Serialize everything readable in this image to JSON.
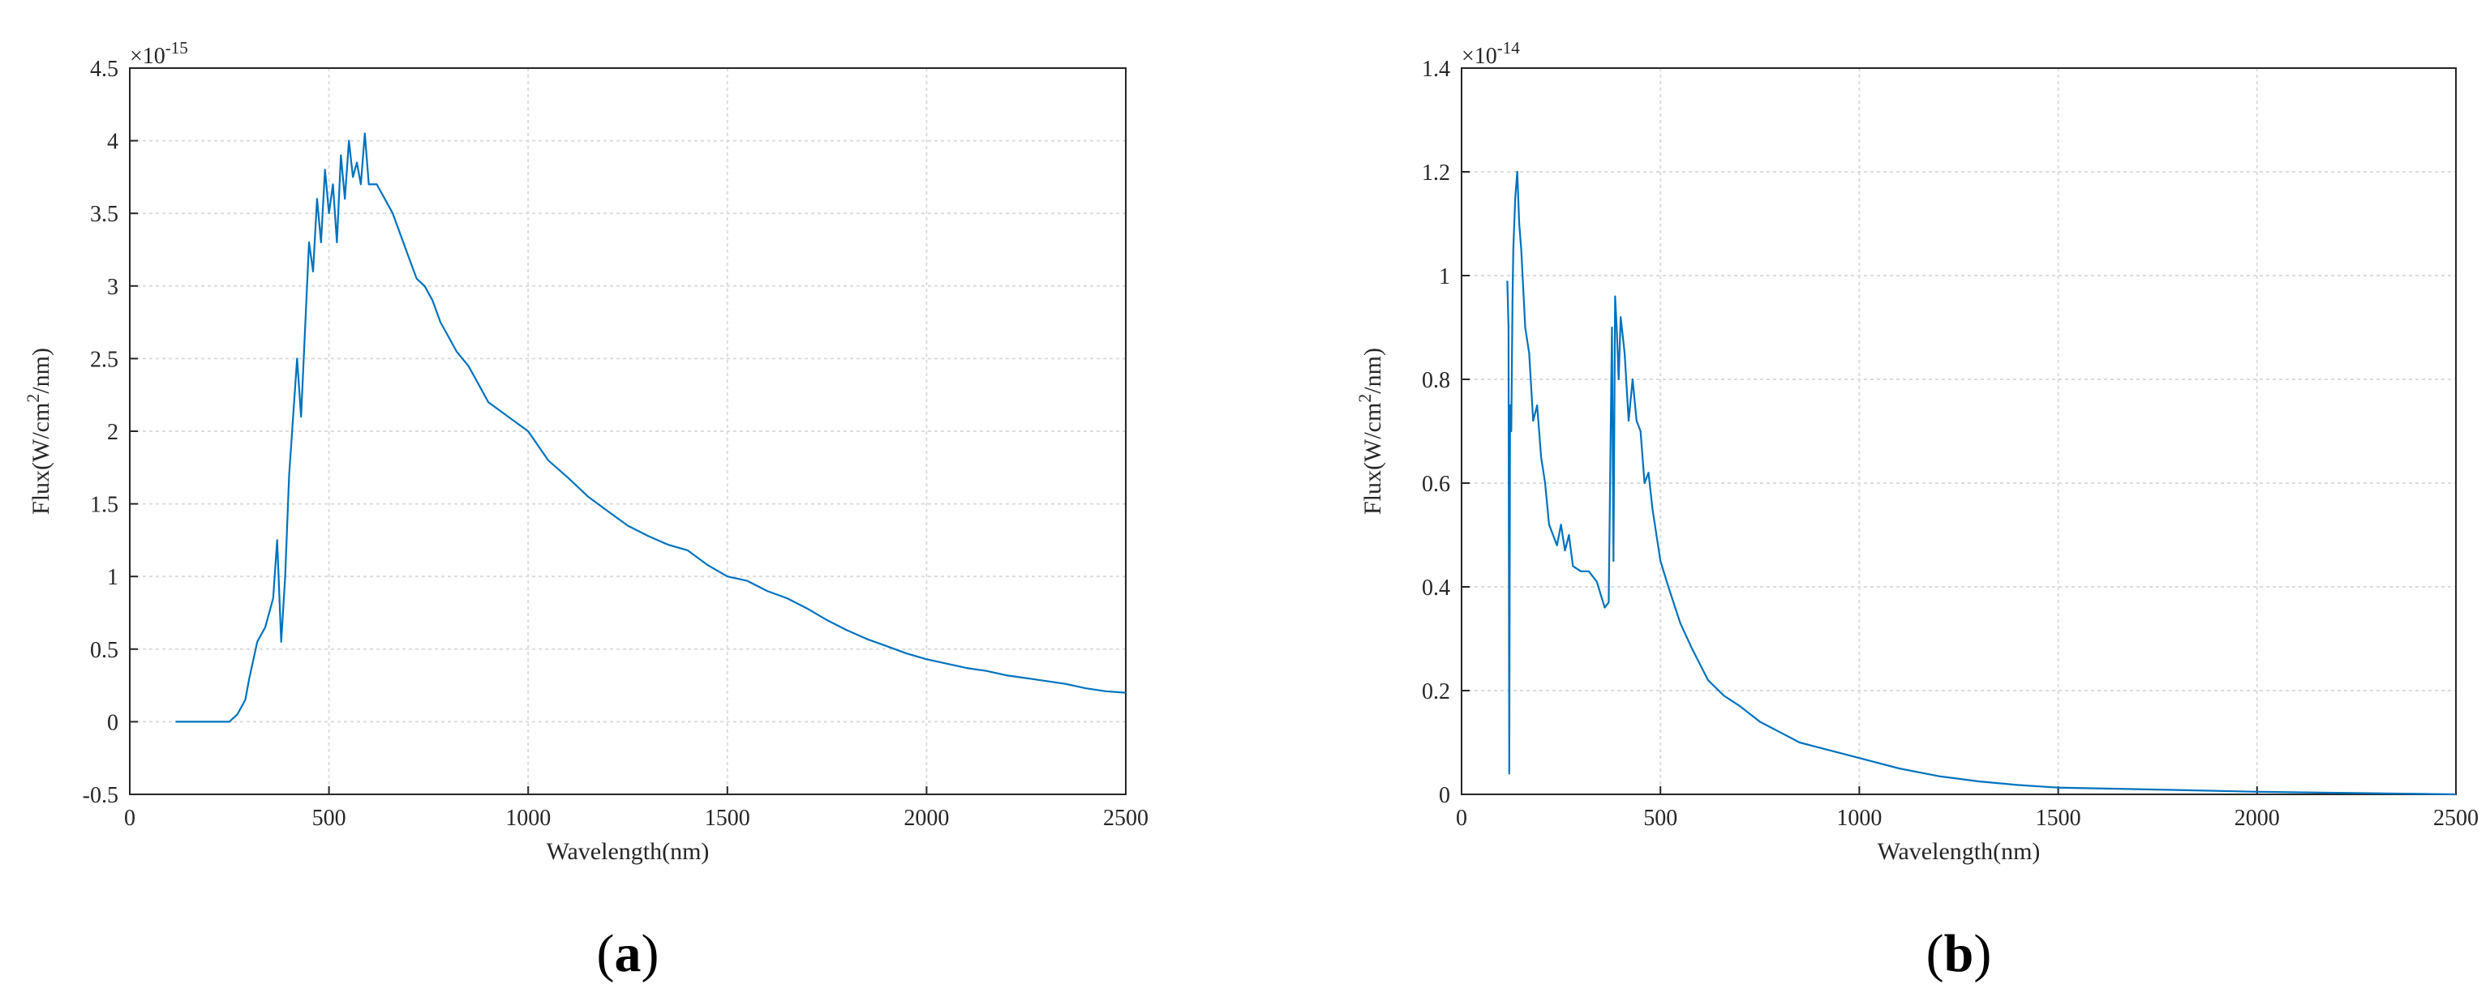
{
  "chart_data": [
    {
      "type": "line",
      "panel_label": "a",
      "xlabel": "Wavelength(nm)",
      "ylabel_prefix": "Flux(W/cm",
      "ylabel_sup": "2",
      "ylabel_suffix": "/nm)",
      "exponent_base": "×10",
      "exponent_power": "-15",
      "xlim": [
        0,
        2500
      ],
      "ylim": [
        -0.5,
        4.5
      ],
      "xticks": [
        0,
        500,
        1000,
        1500,
        2000,
        2500
      ],
      "xtick_labels": [
        "0",
        "500",
        "1000",
        "1500",
        "2000",
        "2500"
      ],
      "yticks": [
        -0.5,
        0,
        0.5,
        1,
        1.5,
        2,
        2.5,
        3,
        3.5,
        4,
        4.5
      ],
      "ytick_labels": [
        "-0.5",
        "0",
        "0.5",
        "1",
        "1.5",
        "2",
        "2.5",
        "3",
        "3.5",
        "4",
        "4.5"
      ],
      "grid": true,
      "color": "#0072bd",
      "series": [
        {
          "x": [
            115,
            150,
            200,
            250,
            270,
            290,
            300,
            320,
            340,
            360,
            370,
            380,
            390,
            400,
            410,
            420,
            430,
            440,
            450,
            460,
            470,
            480,
            490,
            500,
            510,
            520,
            530,
            540,
            550,
            560,
            570,
            580,
            590,
            600,
            620,
            640,
            660,
            680,
            700,
            720,
            740,
            760,
            780,
            800,
            820,
            850,
            880,
            900,
            950,
            1000,
            1050,
            1100,
            1150,
            1200,
            1250,
            1300,
            1350,
            1400,
            1450,
            1500,
            1550,
            1600,
            1650,
            1700,
            1750,
            1800,
            1850,
            1900,
            1950,
            2000,
            2050,
            2100,
            2150,
            2200,
            2250,
            2300,
            2350,
            2400,
            2450,
            2500
          ],
          "y": [
            0.0,
            0.0,
            0.0,
            0.0,
            0.05,
            0.15,
            0.3,
            0.55,
            0.65,
            0.85,
            1.25,
            0.55,
            1.0,
            1.7,
            2.1,
            2.5,
            2.1,
            2.7,
            3.3,
            3.1,
            3.6,
            3.3,
            3.8,
            3.5,
            3.7,
            3.3,
            3.9,
            3.6,
            4.0,
            3.75,
            3.85,
            3.7,
            4.05,
            3.7,
            3.7,
            3.6,
            3.5,
            3.35,
            3.2,
            3.05,
            3.0,
            2.9,
            2.75,
            2.65,
            2.55,
            2.45,
            2.3,
            2.2,
            2.1,
            2.0,
            1.8,
            1.68,
            1.55,
            1.45,
            1.35,
            1.28,
            1.22,
            1.18,
            1.08,
            1.0,
            0.97,
            0.9,
            0.85,
            0.78,
            0.7,
            0.63,
            0.57,
            0.52,
            0.47,
            0.43,
            0.4,
            0.37,
            0.35,
            0.32,
            0.3,
            0.28,
            0.26,
            0.23,
            0.21,
            0.2
          ]
        }
      ]
    },
    {
      "type": "line",
      "panel_label": "b",
      "xlabel": "Wavelength(nm)",
      "ylabel_prefix": "Flux(W/cm",
      "ylabel_sup": "2",
      "ylabel_suffix": "/nm)",
      "exponent_base": "×10",
      "exponent_power": "-14",
      "xlim": [
        0,
        2500
      ],
      "ylim": [
        0,
        1.4
      ],
      "xticks": [
        0,
        500,
        1000,
        1500,
        2000,
        2500
      ],
      "xtick_labels": [
        "0",
        "500",
        "1000",
        "1500",
        "2000",
        "2500"
      ],
      "yticks": [
        0,
        0.2,
        0.4,
        0.6,
        0.8,
        1,
        1.2,
        1.4
      ],
      "ytick_labels": [
        "0",
        "0.2",
        "0.4",
        "0.6",
        "0.8",
        "1",
        "1.2",
        "1.4"
      ],
      "grid": true,
      "color": "#0072bd",
      "series": [
        {
          "x": [
            115,
            118,
            120,
            122,
            125,
            128,
            130,
            135,
            140,
            145,
            150,
            160,
            170,
            180,
            190,
            200,
            210,
            220,
            230,
            240,
            250,
            260,
            270,
            280,
            300,
            320,
            340,
            360,
            370,
            378,
            382,
            386,
            390,
            395,
            400,
            410,
            420,
            430,
            440,
            450,
            460,
            470,
            480,
            490,
            500,
            520,
            550,
            580,
            620,
            660,
            700,
            750,
            800,
            850,
            900,
            1000,
            1100,
            1200,
            1300,
            1400,
            1500,
            1700,
            2000,
            2200,
            2400,
            2500
          ],
          "y": [
            0.99,
            0.9,
            0.04,
            0.75,
            0.7,
            0.95,
            1.05,
            1.15,
            1.2,
            1.1,
            1.05,
            0.9,
            0.85,
            0.72,
            0.75,
            0.65,
            0.6,
            0.52,
            0.5,
            0.48,
            0.52,
            0.47,
            0.5,
            0.44,
            0.43,
            0.43,
            0.41,
            0.36,
            0.37,
            0.9,
            0.45,
            0.96,
            0.9,
            0.8,
            0.92,
            0.85,
            0.72,
            0.8,
            0.72,
            0.7,
            0.6,
            0.62,
            0.55,
            0.5,
            0.45,
            0.4,
            0.33,
            0.28,
            0.22,
            0.19,
            0.17,
            0.14,
            0.12,
            0.1,
            0.09,
            0.07,
            0.05,
            0.035,
            0.025,
            0.018,
            0.013,
            0.01,
            0.005,
            0.003,
            0.001,
            0.0
          ]
        }
      ]
    }
  ]
}
